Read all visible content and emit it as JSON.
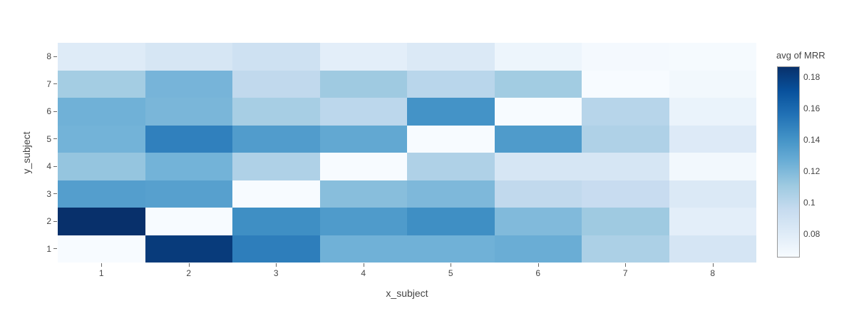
{
  "figure": {
    "background": "#ffffff"
  },
  "chart_data": {
    "type": "heatmap",
    "title": "",
    "xlabel": "x_subject",
    "ylabel": "y_subject",
    "x_tick_labels": [
      "1",
      "2",
      "3",
      "4",
      "5",
      "6",
      "7",
      "8"
    ],
    "y_tick_labels_top_to_bottom": [
      "8",
      "7",
      "6",
      "5",
      "4",
      "3",
      "2",
      "1"
    ],
    "zmin": 0.066,
    "zmax": 0.187,
    "z_rows_top_to_bottom": [
      {
        "y": "8",
        "values": [
          0.081,
          0.086,
          0.091,
          0.078,
          0.083,
          0.072,
          0.068,
          0.067
        ]
      },
      {
        "y": "7",
        "values": [
          0.109,
          0.123,
          0.098,
          0.111,
          0.101,
          0.11,
          0.066,
          0.069
        ]
      },
      {
        "y": "6",
        "values": [
          0.125,
          0.122,
          0.108,
          0.1,
          0.141,
          0.066,
          0.102,
          0.074
        ]
      },
      {
        "y": "5",
        "values": [
          0.124,
          0.15,
          0.136,
          0.13,
          0.066,
          0.137,
          0.105,
          0.082
        ]
      },
      {
        "y": "4",
        "values": [
          0.114,
          0.124,
          0.105,
          0.066,
          0.105,
          0.086,
          0.086,
          0.069
        ]
      },
      {
        "y": "3",
        "values": [
          0.135,
          0.134,
          0.066,
          0.118,
          0.121,
          0.098,
          0.095,
          0.083
        ]
      },
      {
        "y": "2",
        "values": [
          0.187,
          0.066,
          0.143,
          0.137,
          0.143,
          0.12,
          0.111,
          0.078
        ]
      },
      {
        "y": "1",
        "values": [
          0.066,
          0.182,
          0.151,
          0.125,
          0.125,
          0.127,
          0.106,
          0.087
        ]
      }
    ],
    "colorscale": "Blues",
    "colorscale_stops": [
      {
        "t": 0.0,
        "color": "#f7fbff"
      },
      {
        "t": 0.125,
        "color": "#deebf7"
      },
      {
        "t": 0.25,
        "color": "#c6dbef"
      },
      {
        "t": 0.375,
        "color": "#9ecae1"
      },
      {
        "t": 0.5,
        "color": "#6baed6"
      },
      {
        "t": 0.625,
        "color": "#4292c6"
      },
      {
        "t": 0.75,
        "color": "#2171b5"
      },
      {
        "t": 0.875,
        "color": "#08519c"
      },
      {
        "t": 1.0,
        "color": "#08306b"
      }
    ],
    "colorbar": {
      "title": "avg of MRR",
      "tick_labels": [
        "0.18",
        "0.16",
        "0.14",
        "0.12",
        "0.1",
        "0.08"
      ],
      "tick_values": [
        0.18,
        0.16,
        0.14,
        0.12,
        0.1,
        0.08
      ]
    },
    "grid": false,
    "legend_position": "right-colorbar"
  }
}
